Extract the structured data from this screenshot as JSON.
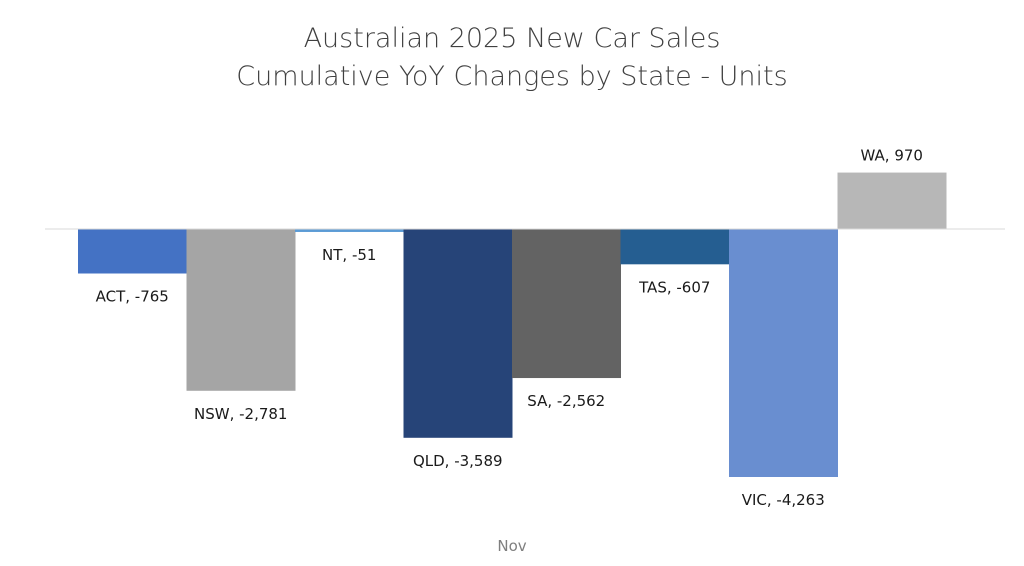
{
  "chart_data": {
    "type": "bar",
    "title": [
      "Australian 2025 New Car Sales",
      "Cumulative YoY Changes by State - Units"
    ],
    "xlabel": "",
    "ylabel": "",
    "category_axis_label": "Nov",
    "ylim": [
      -4263,
      970
    ],
    "grid": false,
    "legend": "none",
    "series": [
      {
        "name": "ACT",
        "value": -765,
        "label": "ACT, -765",
        "color": "#4472C4"
      },
      {
        "name": "NSW",
        "value": -2781,
        "label": "NSW, -2,781",
        "color": "#A5A5A5"
      },
      {
        "name": "NT",
        "value": -51,
        "label": "NT, -51",
        "color": "#5B9BD5"
      },
      {
        "name": "QLD",
        "value": -3589,
        "label": "QLD, -3,589",
        "color": "#264478"
      },
      {
        "name": "SA",
        "value": -2562,
        "label": "SA, -2,562",
        "color": "#636363"
      },
      {
        "name": "TAS",
        "value": -607,
        "label": "TAS, -607",
        "color": "#255E91"
      },
      {
        "name": "VIC",
        "value": -4263,
        "label": "VIC, -4,263",
        "color": "#698ED0"
      },
      {
        "name": "WA",
        "value": 970,
        "label": "WA, 970",
        "color": "#B7B7B7"
      }
    ]
  }
}
